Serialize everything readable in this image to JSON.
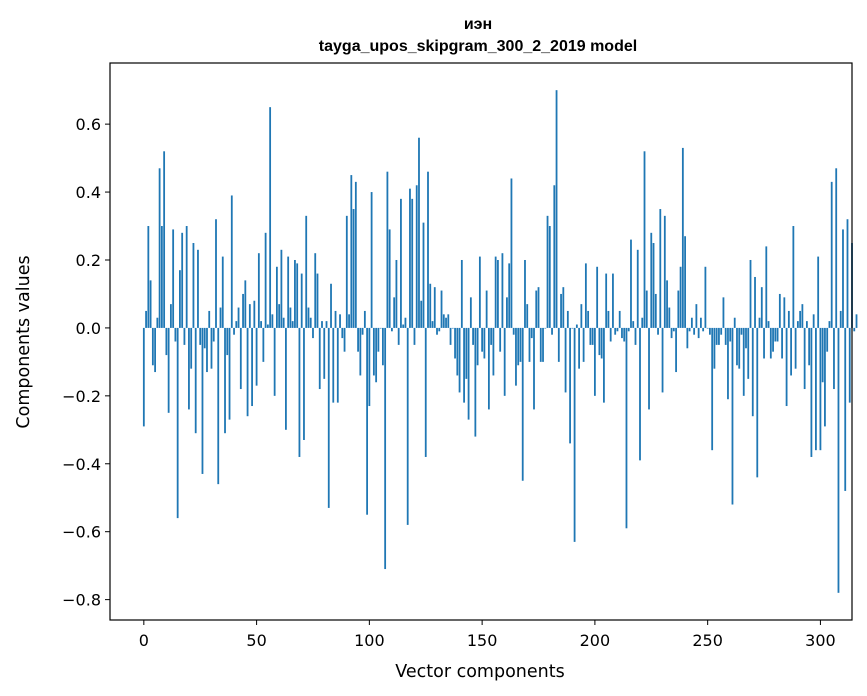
{
  "chart_data": {
    "type": "bar",
    "title_line1": "иэн",
    "title_line2": "tayga_upos_skipgram_300_2_2019 model",
    "xlabel": "Vector components",
    "ylabel": "Components values",
    "xlim": [
      -15,
      314
    ],
    "ylim": [
      -0.86,
      0.78
    ],
    "xticks": [
      0,
      50,
      100,
      150,
      200,
      250,
      300
    ],
    "yticks": [
      0.6,
      0.4,
      0.2,
      0.0,
      -0.2,
      -0.4,
      -0.6,
      -0.8
    ],
    "ytick_labels": [
      "0.6",
      "0.4",
      "0.2",
      "0.0",
      "−0.2",
      "−0.4",
      "−0.6",
      "−0.8"
    ],
    "bar_color": "#1f77b4",
    "values": [
      -0.29,
      0.05,
      0.3,
      0.14,
      -0.11,
      -0.13,
      0.03,
      0.47,
      0.3,
      0.52,
      -0.08,
      -0.25,
      0.07,
      0.29,
      -0.04,
      -0.56,
      0.17,
      0.28,
      -0.05,
      0.3,
      -0.24,
      -0.12,
      0.25,
      -0.31,
      0.23,
      -0.05,
      -0.43,
      -0.06,
      -0.13,
      0.05,
      -0.12,
      -0.04,
      0.32,
      -0.46,
      0.06,
      0.21,
      -0.31,
      -0.08,
      -0.27,
      0.39,
      -0.02,
      0.02,
      0.06,
      -0.18,
      0.1,
      0.14,
      -0.26,
      0.07,
      -0.23,
      0.08,
      -0.17,
      0.22,
      0.02,
      -0.1,
      0.28,
      0.01,
      0.65,
      0.04,
      -0.2,
      0.18,
      0.07,
      0.23,
      0.03,
      -0.3,
      0.21,
      0.06,
      0.02,
      0.2,
      0.19,
      -0.38,
      0.16,
      -0.33,
      0.33,
      0.06,
      0.03,
      -0.03,
      0.22,
      0.16,
      -0.18,
      0.02,
      -0.15,
      0.02,
      -0.53,
      0.13,
      -0.22,
      0.05,
      -0.22,
      0.04,
      -0.03,
      -0.07,
      0.33,
      0.04,
      0.45,
      0.35,
      0.43,
      -0.07,
      -0.14,
      -0.02,
      0.05,
      -0.55,
      -0.23,
      0.4,
      -0.14,
      -0.16,
      -0.07,
      0.0,
      -0.11,
      -0.71,
      0.46,
      0.29,
      -0.01,
      0.09,
      0.2,
      -0.05,
      0.38,
      0.01,
      0.03,
      -0.58,
      0.41,
      0.38,
      -0.05,
      0.42,
      0.56,
      0.08,
      0.31,
      -0.38,
      0.46,
      0.13,
      0.02,
      0.12,
      -0.02,
      -0.01,
      0.11,
      0.04,
      0.03,
      0.04,
      -0.05,
      0.0,
      -0.09,
      -0.14,
      -0.19,
      0.2,
      -0.22,
      -0.15,
      -0.27,
      0.09,
      -0.05,
      -0.32,
      -0.11,
      0.21,
      -0.07,
      -0.09,
      0.11,
      -0.24,
      -0.05,
      -0.14,
      0.21,
      0.2,
      -0.07,
      0.22,
      -0.2,
      0.09,
      0.19,
      0.44,
      -0.02,
      -0.17,
      -0.11,
      -0.1,
      -0.45,
      0.2,
      0.07,
      -0.1,
      -0.03,
      -0.24,
      0.11,
      0.12,
      -0.1,
      -0.1,
      0.0,
      0.33,
      0.3,
      -0.02,
      0.42,
      0.7,
      -0.1,
      0.1,
      0.12,
      -0.19,
      0.05,
      -0.34,
      0.0,
      -0.63,
      0.01,
      -0.12,
      0.07,
      -0.1,
      0.19,
      0.05,
      -0.05,
      -0.05,
      -0.2,
      0.18,
      -0.08,
      -0.09,
      -0.22,
      0.16,
      0.05,
      -0.04,
      0.16,
      -0.02,
      -0.01,
      0.05,
      -0.03,
      -0.04,
      -0.59,
      -0.01,
      0.26,
      0.02,
      -0.05,
      0.23,
      -0.39,
      0.03,
      0.52,
      0.11,
      -0.24,
      0.28,
      0.25,
      0.1,
      -0.02,
      0.35,
      -0.19,
      0.33,
      0.14,
      0.06,
      -0.03,
      -0.01,
      -0.13,
      0.11,
      0.18,
      0.53,
      0.27,
      -0.06,
      -0.01,
      0.03,
      -0.02,
      0.07,
      -0.03,
      0.03,
      -0.01,
      0.18,
      0.0,
      -0.02,
      -0.36,
      -0.12,
      -0.05,
      -0.05,
      -0.02,
      0.09,
      -0.05,
      -0.21,
      -0.04,
      -0.52,
      0.03,
      -0.11,
      -0.12,
      -0.02,
      -0.2,
      -0.06,
      -0.15,
      0.2,
      -0.26,
      0.15,
      -0.44,
      0.03,
      0.12,
      -0.09,
      0.24,
      0.02,
      -0.09,
      -0.07,
      -0.04,
      -0.04,
      0.1,
      -0.09,
      0.09,
      -0.23,
      0.05,
      -0.14,
      0.3,
      -0.12,
      0.02,
      0.05,
      0.07,
      -0.18,
      0.02,
      -0.11,
      -0.38,
      0.04,
      -0.36,
      0.21,
      -0.36,
      -0.16,
      -0.29,
      -0.07,
      0.02,
      0.43,
      -0.18,
      0.47,
      -0.78,
      0.05,
      0.29,
      -0.48,
      0.32,
      -0.22,
      0.25,
      -0.01,
      0.04
    ]
  }
}
